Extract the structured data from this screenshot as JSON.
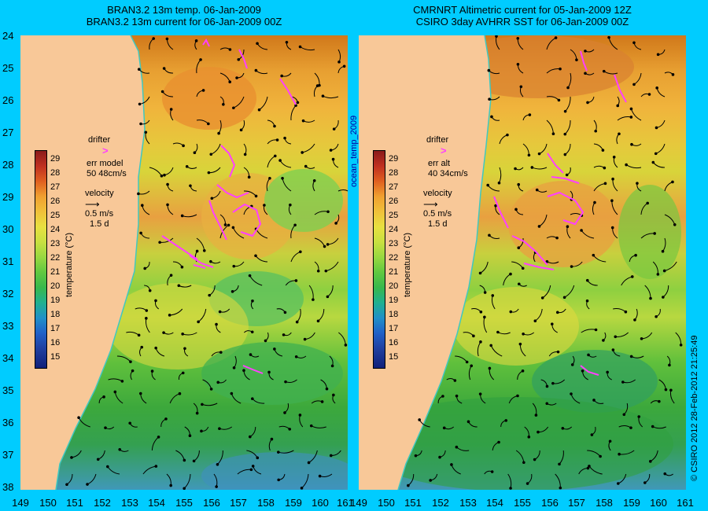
{
  "titles": {
    "left_line1": "BRAN3.2 13m temp. 06-Jan-2009",
    "left_line2": "BRAN3.2 13m current for 06-Jan-2009 00Z",
    "right_line1": "CMRNRT Altimetric current for 05-Jan-2009 12Z",
    "right_line2": "CSIRO 3day AVHRR SST for 06-Jan-2009 00Z"
  },
  "axes": {
    "lat_ticks": [
      "24",
      "25",
      "26",
      "27",
      "28",
      "29",
      "30",
      "31",
      "32",
      "33",
      "34",
      "35",
      "36",
      "37",
      "38"
    ],
    "lon_ticks": [
      "149",
      "150",
      "151",
      "152",
      "153",
      "154",
      "155",
      "156",
      "157",
      "158",
      "159",
      "160",
      "161"
    ]
  },
  "colorbar": {
    "ticks": [
      "29",
      "28",
      "27",
      "26",
      "25",
      "24",
      "23",
      "22",
      "21",
      "20",
      "19",
      "18",
      "17",
      "16",
      "15"
    ],
    "label": "temperature (°C)"
  },
  "legend_left": {
    "drifter": "drifter",
    "err_line1": "err model",
    "err_line2": "50 48cm/s",
    "velocity": "velocity",
    "speed": "0.5 m/s",
    "duration": "1.5 d"
  },
  "legend_right": {
    "drifter": "drifter",
    "err_line1": "err alt",
    "err_line2": "40 34cm/s",
    "velocity": "velocity",
    "speed": "0.5 m/s",
    "duration": "1.5 d"
  },
  "vertical_label": "ocean_temp_2009",
  "credit": "© CSIRO 2012   28-Feb-2012 21:25:49",
  "colors": {
    "background": "#00ccff",
    "land": "#f8c898",
    "coast": "#40c8c0",
    "drifter": "#ff40ff",
    "arrow": "#000000"
  }
}
